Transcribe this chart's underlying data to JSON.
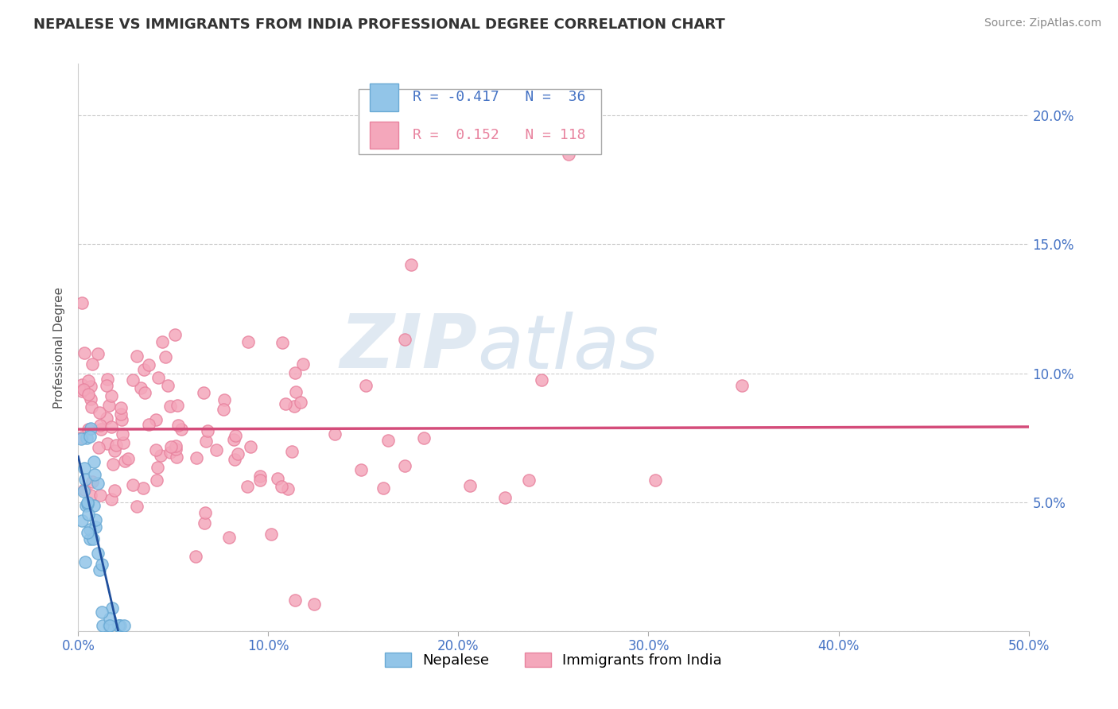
{
  "title": "NEPALESE VS IMMIGRANTS FROM INDIA PROFESSIONAL DEGREE CORRELATION CHART",
  "source": "Source: ZipAtlas.com",
  "xlabel_nepalese": "Nepalese",
  "xlabel_india": "Immigrants from India",
  "ylabel": "Professional Degree",
  "xlim": [
    0.0,
    0.5
  ],
  "ylim": [
    0.0,
    0.22
  ],
  "xticks": [
    0.0,
    0.1,
    0.2,
    0.3,
    0.4,
    0.5
  ],
  "xtick_labels": [
    "0.0%",
    "10.0%",
    "20.0%",
    "30.0%",
    "40.0%",
    "50.0%"
  ],
  "yticks_right": [
    0.0,
    0.05,
    0.1,
    0.15,
    0.2
  ],
  "ytick_labels_right": [
    "",
    "5.0%",
    "10.0%",
    "15.0%",
    "20.0%"
  ],
  "nepalese_color": "#92C5E8",
  "india_color": "#F4A7BB",
  "nepalese_edge_color": "#6AAAD4",
  "india_edge_color": "#E8829E",
  "nepalese_line_color": "#1F4E9C",
  "india_line_color": "#D44C7A",
  "tick_color": "#4472C4",
  "R_nepalese": -0.417,
  "N_nepalese": 36,
  "R_india": 0.152,
  "N_india": 118,
  "watermark_zip": "ZIP",
  "watermark_atlas": "atlas",
  "grid_color": "#CCCCCC",
  "title_fontsize": 13,
  "source_fontsize": 10,
  "tick_fontsize": 12,
  "ylabel_fontsize": 11
}
